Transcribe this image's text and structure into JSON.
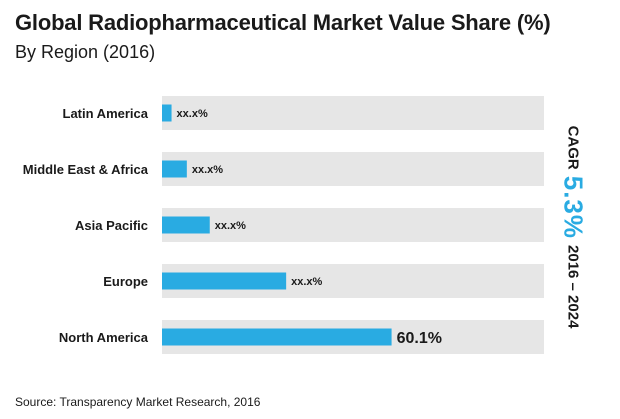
{
  "title": "Global Radiopharmaceutical  Market Value Share (%)",
  "subtitle": "By Region (2016)",
  "cagr": {
    "label": "CAGR",
    "value": "5.3%",
    "period": "2016 – 2024"
  },
  "source": "Source: Transparency Market Research, 2016",
  "colors": {
    "bar": "#29abe2",
    "track": "#e6e6e6",
    "accent": "#29abe2"
  },
  "chart_data": {
    "type": "bar",
    "orientation": "horizontal",
    "title": "Global Radiopharmaceutical  Market Value Share (%)",
    "subtitle": "By Region (2016)",
    "categories": [
      "Latin America",
      "Middle East & Africa",
      "Asia Pacific",
      "Europe",
      "North America"
    ],
    "values": [
      2.5,
      6.5,
      12.5,
      32.5,
      60.1
    ],
    "data_labels": [
      "xx.x%",
      "xx.x%",
      "xx.x%",
      "xx.x%",
      "60.1%"
    ],
    "xlim": [
      0,
      100
    ],
    "grid": false,
    "legend": "none"
  }
}
